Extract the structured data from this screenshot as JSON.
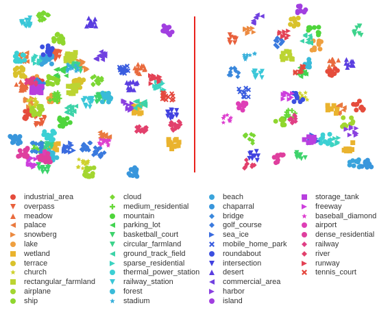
{
  "chart_data": {
    "type": "scatter",
    "title": "",
    "panels": [
      "left",
      "right"
    ],
    "divider_color": "#e8201a",
    "series": [
      {
        "name": "industrial_area",
        "marker": "circle",
        "color": "#e54c3c",
        "left": [
          [
            40,
            47
          ],
          [
            30,
            65
          ]
        ],
        "right": [
          [
            170,
            40
          ],
          [
            205,
            60
          ]
        ]
      },
      {
        "name": "overpass",
        "marker": "triangle-down",
        "color": "#e8603c",
        "left": [
          [
            44,
            69
          ],
          [
            65,
            30
          ]
        ],
        "right": [
          [
            40,
            20
          ]
        ]
      },
      {
        "name": "meadow",
        "marker": "triangle-up",
        "color": "#e96b3e",
        "left": [
          [
            20,
            48
          ],
          [
            170,
            38
          ]
        ],
        "right": [
          [
            172,
            35
          ]
        ]
      },
      {
        "name": "palace",
        "marker": "triangle-left",
        "color": "#ea7a3f",
        "left": [
          [
            22,
            31
          ],
          [
            125,
            78
          ]
        ],
        "right": [
          [
            180,
            62
          ]
        ]
      },
      {
        "name": "snowberg",
        "marker": "triangle-right",
        "color": "#ec8a40",
        "left": [
          [
            97,
            36
          ],
          [
            32,
            58
          ]
        ],
        "right": [
          [
            60,
            15
          ]
        ]
      },
      {
        "name": "lake",
        "marker": "circle",
        "color": "#efa040",
        "left": [
          [
            36,
            45
          ],
          [
            60,
            56
          ]
        ],
        "right": [
          [
            150,
            24
          ]
        ]
      },
      {
        "name": "wetland",
        "marker": "square",
        "color": "#eab32e",
        "left": [
          [
            213,
            83
          ],
          [
            165,
            62
          ],
          [
            60,
            85
          ]
        ],
        "right": [
          [
            170,
            62
          ],
          [
            190,
            85
          ]
        ]
      },
      {
        "name": "terrace",
        "marker": "circle",
        "color": "#d9c22c",
        "left": [
          [
            18,
            40
          ],
          [
            92,
            47
          ]
        ],
        "right": [
          [
            120,
            10
          ]
        ]
      },
      {
        "name": "church",
        "marker": "star",
        "color": "#cfd12d",
        "left": [
          [
            35,
            58
          ],
          [
            98,
            95
          ]
        ],
        "right": [
          [
            130,
            55
          ]
        ]
      },
      {
        "name": "rectangular_farmland",
        "marker": "square",
        "color": "#bcd432",
        "left": [
          [
            86,
            50
          ],
          [
            82,
            31
          ]
        ],
        "right": [
          [
            110,
            30
          ]
        ]
      },
      {
        "name": "airplane",
        "marker": "circle",
        "color": "#a3d630",
        "left": [
          [
            105,
            100
          ],
          [
            40,
            63
          ]
        ],
        "right": [
          [
            190,
            70
          ]
        ]
      },
      {
        "name": "ship",
        "marker": "circle",
        "color": "#8fd62e",
        "left": [
          [
            67,
            20
          ],
          [
            60,
            45
          ]
        ],
        "right": [
          [
            100,
            70
          ]
        ]
      },
      {
        "name": "cloud",
        "marker": "diamond",
        "color": "#7bd734",
        "left": [
          [
            48,
            7
          ],
          [
            115,
            45
          ]
        ],
        "right": [
          [
            60,
            80
          ]
        ]
      },
      {
        "name": "medium_residential",
        "marker": "plus",
        "color": "#66d838",
        "left": [
          [
            62,
            55
          ],
          [
            42,
            85
          ]
        ],
        "right": [
          [
            115,
            65
          ]
        ]
      },
      {
        "name": "mountain",
        "marker": "circle",
        "color": "#4fd53c",
        "left": [
          [
            75,
            70
          ]
        ],
        "right": [
          [
            145,
            15
          ]
        ]
      },
      {
        "name": "parking_lot",
        "marker": "triangle-left",
        "color": "#43d351",
        "left": [
          [
            70,
            40
          ]
        ],
        "right": [
          [
            130,
            40
          ]
        ]
      },
      {
        "name": "basketball_court",
        "marker": "triangle-down",
        "color": "#3ed36c",
        "left": [
          [
            48,
            98
          ],
          [
            120,
            55
          ]
        ],
        "right": [
          [
            128,
            90
          ]
        ]
      },
      {
        "name": "circular_farmland",
        "marker": "triangle-down",
        "color": "#3dd38c",
        "left": [
          [
            88,
            37
          ],
          [
            52,
            85
          ]
        ],
        "right": [
          [
            205,
            15
          ]
        ]
      },
      {
        "name": "ground_track_field",
        "marker": "triangle-left",
        "color": "#3dd3a8",
        "left": [
          [
            82,
            63
          ],
          [
            170,
            60
          ]
        ],
        "right": [
          [
            135,
            20
          ]
        ]
      },
      {
        "name": "sparse_residential",
        "marker": "triangle-right",
        "color": "#3cd3c1",
        "left": [
          [
            42,
            33
          ],
          [
            195,
            48
          ]
        ],
        "right": [
          [
            172,
            82
          ]
        ]
      },
      {
        "name": "thermal_power_station",
        "marker": "circle",
        "color": "#3cd0d4",
        "left": [
          [
            55,
            78
          ],
          [
            18,
            31
          ]
        ],
        "right": [
          [
            160,
            80
          ]
        ]
      },
      {
        "name": "railway_station",
        "marker": "triangle-down",
        "color": "#3bc7d8",
        "left": [
          [
            105,
            58
          ],
          [
            25,
            10
          ]
        ],
        "right": [
          [
            72,
            42
          ]
        ]
      },
      {
        "name": "forest",
        "marker": "circle",
        "color": "#3abbd9",
        "left": [
          [
            128,
            55
          ],
          [
            60,
            90
          ]
        ],
        "right": [
          [
            135,
            35
          ]
        ]
      },
      {
        "name": "stadium",
        "marker": "star",
        "color": "#39b0db",
        "left": [
          [
            85,
            38
          ]
        ],
        "right": [
          [
            60,
            30
          ]
        ]
      },
      {
        "name": "beach",
        "marker": "circle",
        "color": "#3aa4dc",
        "left": [
          [
            52,
            33
          ]
        ],
        "right": [
          [
            200,
            95
          ]
        ]
      },
      {
        "name": "chaparral",
        "marker": "circle",
        "color": "#3996dc",
        "left": [
          [
            162,
            100
          ],
          [
            12,
            80
          ]
        ],
        "right": [
          [
            215,
            95
          ]
        ]
      },
      {
        "name": "bridge",
        "marker": "diamond",
        "color": "#3a88dc",
        "left": [
          [
            42,
            47
          ],
          [
            40,
            85
          ]
        ],
        "right": [
          [
            40,
            40
          ]
        ]
      },
      {
        "name": "golf_course",
        "marker": "diamond",
        "color": "#3a7ade",
        "left": [
          [
            118,
            88
          ],
          [
            103,
            84
          ]
        ],
        "right": [
          [
            97,
            22
          ]
        ]
      },
      {
        "name": "sea_ice",
        "marker": "triangle-right",
        "color": "#3a6bdf",
        "left": [
          [
            80,
            85
          ]
        ],
        "right": [
          [
            145,
            80
          ]
        ]
      },
      {
        "name": "mobile_home_park",
        "marker": "cross",
        "color": "#3a5ddf",
        "left": [
          [
            150,
            38
          ]
        ],
        "right": [
          [
            52,
            52
          ]
        ]
      },
      {
        "name": "roundabout",
        "marker": "circle",
        "color": "#3b4fe0",
        "left": [
          [
            53,
            27
          ]
        ],
        "right": [
          [
            125,
            55
          ]
        ]
      },
      {
        "name": "intersection",
        "marker": "triangle-down",
        "color": "#4141e0",
        "left": [
          [
            210,
            65
          ]
        ],
        "right": [
          [
            65,
            90
          ]
        ]
      },
      {
        "name": "desert",
        "marker": "triangle-up",
        "color": "#5a3ee0",
        "left": [
          [
            160,
            48
          ],
          [
            108,
            10
          ]
        ],
        "right": [
          [
            195,
            35
          ]
        ]
      },
      {
        "name": "commercial_area",
        "marker": "triangle-left",
        "color": "#7040e0",
        "left": [
          [
            120,
            30
          ]
        ],
        "right": [
          [
            70,
            8
          ]
        ]
      },
      {
        "name": "harbor",
        "marker": "triangle-right",
        "color": "#8a40e0",
        "left": [
          [
            155,
            60
          ]
        ],
        "right": [
          [
            195,
            75
          ]
        ]
      },
      {
        "name": "island",
        "marker": "circle",
        "color": "#a13fe0",
        "left": [
          [
            205,
            15
          ]
        ],
        "right": [
          [
            130,
            3
          ]
        ]
      },
      {
        "name": "storage_tank",
        "marker": "square",
        "color": "#b83fdf",
        "left": [
          [
            40,
            50
          ]
        ],
        "right": [
          [
            140,
            80
          ]
        ]
      },
      {
        "name": "freeway",
        "marker": "triangle-right",
        "color": "#cd3fdd",
        "left": [
          [
            35,
            94
          ]
        ],
        "right": [
          [
            110,
            55
          ]
        ]
      },
      {
        "name": "baseball_diamond",
        "marker": "star",
        "color": "#dd3fcf",
        "left": [
          [
            125,
            82
          ]
        ],
        "right": [
          [
            30,
            68
          ]
        ]
      },
      {
        "name": "airport",
        "marker": "circle",
        "color": "#de3fb6",
        "left": [
          [
            48,
            90
          ]
        ],
        "right": [
          [
            50,
            60
          ]
        ]
      },
      {
        "name": "dense_residential",
        "marker": "circle",
        "color": "#df3f9e",
        "left": [
          [
            22,
            88
          ],
          [
            50,
            91
          ]
        ],
        "right": [
          [
            100,
            92
          ]
        ]
      },
      {
        "name": "railway",
        "marker": "diamond",
        "color": "#e03f85",
        "left": [
          [
            32,
            45
          ]
        ],
        "right": [
          [
            120,
            68
          ]
        ]
      },
      {
        "name": "river",
        "marker": "diamond",
        "color": "#e2406c",
        "left": [
          [
            215,
            72
          ],
          [
            172,
            75
          ]
        ],
        "right": [
          [
            60,
            95
          ]
        ]
      },
      {
        "name": "runway",
        "marker": "triangle-right",
        "color": "#e34255",
        "left": [
          [
            190,
            44
          ]
        ],
        "right": [
          [
            105,
            18
          ]
        ]
      },
      {
        "name": "tennis_court",
        "marker": "cross",
        "color": "#e4483e",
        "left": [
          [
            205,
            55
          ]
        ],
        "right": [
          [
            125,
            38
          ]
        ]
      }
    ]
  }
}
